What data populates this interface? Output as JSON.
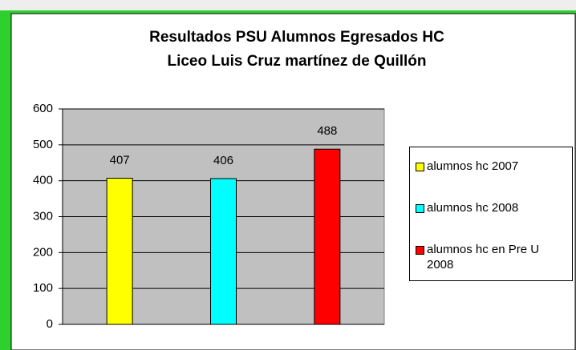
{
  "chart_data": {
    "type": "bar",
    "title": [
      "Resultados PSU Alumnos Egresados HC",
      "Liceo Luis Cruz martínez de Quillón"
    ],
    "categories": [
      null
    ],
    "series": [
      {
        "name": "alumnos hc 2007",
        "color": "#ffff00",
        "values": [
          407
        ]
      },
      {
        "name": "alumnos hc 2008",
        "color": "#00ffff",
        "values": [
          406
        ]
      },
      {
        "name": "alumnos hc en Pre U 2008",
        "color": "#ff0000",
        "values": [
          488
        ]
      }
    ],
    "ylim": [
      0,
      600
    ],
    "yticks": [
      0,
      100,
      200,
      300,
      400,
      500,
      600
    ],
    "grid": true,
    "legend": "right"
  }
}
